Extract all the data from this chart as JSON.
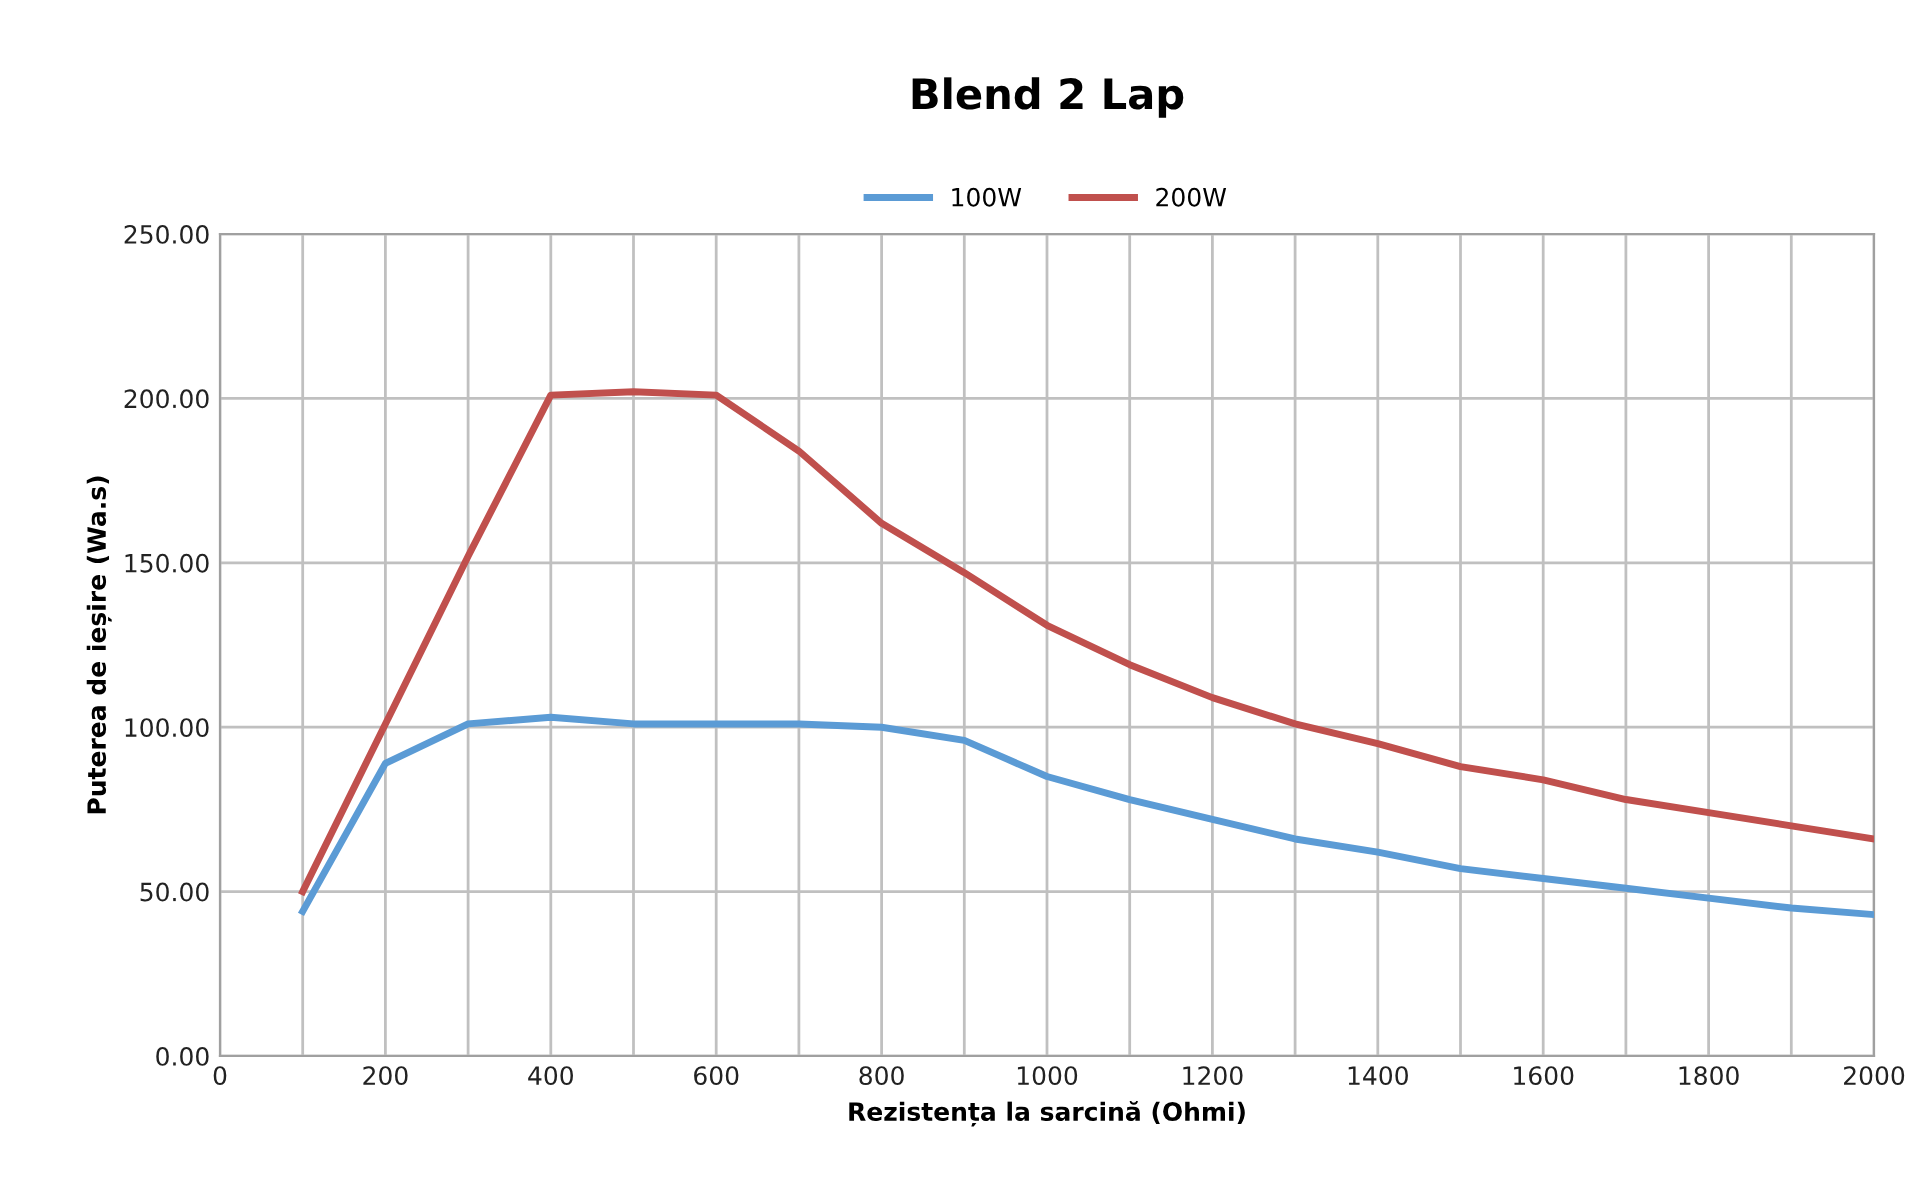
{
  "chart_data": {
    "type": "line",
    "title": "Blend 2 Lap",
    "xlabel": "Rezistența la sarcină (Ohmi)",
    "ylabel": "Puterea de ieșire (Wa.s)",
    "x": [
      100,
      200,
      300,
      400,
      500,
      600,
      700,
      800,
      900,
      1000,
      1100,
      1200,
      1300,
      1400,
      1500,
      1600,
      1700,
      1800,
      1900,
      2000
    ],
    "series": [
      {
        "name": "100W",
        "color": "#5b9bd5",
        "values": [
          44,
          89,
          101,
          103,
          101,
          101,
          101,
          100,
          96,
          85,
          78,
          72,
          66,
          62,
          57,
          54,
          51,
          48,
          45,
          43
        ]
      },
      {
        "name": "200W",
        "color": "#c0504d",
        "values": [
          50,
          101,
          152,
          201,
          202,
          201,
          184,
          162,
          147,
          131,
          119,
          109,
          101,
          95,
          88,
          84,
          78,
          74,
          70,
          66
        ]
      }
    ],
    "xlim": [
      0,
      2000
    ],
    "xticks": [
      0,
      {
        "value": 100,
        "label": null
      },
      200,
      {
        "value": 300,
        "label": null
      },
      400,
      {
        "value": 500,
        "label": null
      },
      600,
      {
        "value": 700,
        "label": null
      },
      800,
      {
        "value": 900,
        "label": null
      },
      1000,
      {
        "value": 1100,
        "label": null
      },
      1200,
      {
        "value": 1300,
        "label": null
      },
      1400,
      {
        "value": 1500,
        "label": null
      },
      1600,
      {
        "value": 1700,
        "label": null
      },
      1800,
      {
        "value": 1900,
        "label": null
      },
      2000
    ],
    "ylim": [
      0,
      250
    ],
    "yticks": [
      {
        "value": 0,
        "label": "0.00"
      },
      {
        "value": 50,
        "label": "50.00"
      },
      {
        "value": 100,
        "label": "100.00"
      },
      {
        "value": 150,
        "label": "150.00"
      },
      {
        "value": 200,
        "label": "200.00"
      },
      {
        "value": 250,
        "label": "250.00"
      }
    ],
    "grid": true,
    "legend": "top",
    "marker": "none",
    "line_style": "solid"
  }
}
